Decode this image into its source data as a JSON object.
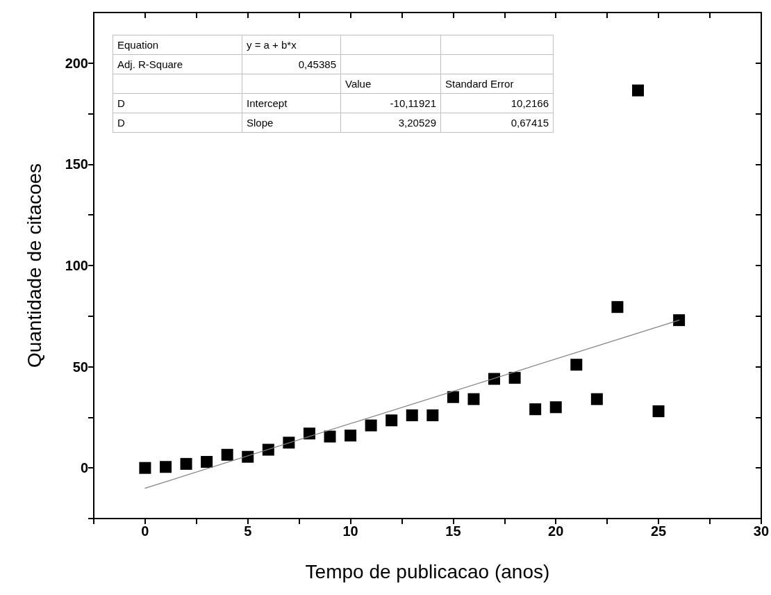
{
  "chart_data": {
    "type": "scatter",
    "xlabel": "Tempo de publicacao (anos)",
    "ylabel": "Quantidade de citacoes",
    "x": [
      0,
      1,
      2,
      3,
      4,
      5,
      6,
      7,
      8,
      9,
      10,
      11,
      12,
      13,
      14,
      15,
      16,
      17,
      18,
      19,
      20,
      21,
      22,
      23,
      24,
      25,
      26
    ],
    "series": [
      {
        "color": "#000000",
        "marker": "square",
        "values": [
          0,
          0.5,
          2,
          3,
          6.5,
          5.5,
          9,
          12.5,
          17,
          15.5,
          16,
          21,
          23.5,
          26,
          26,
          35,
          34,
          44,
          44.5,
          29,
          30,
          51,
          34,
          79.5,
          186.5,
          28,
          73
        ]
      },
      {
        "type": "line",
        "color": "#808080",
        "marker": "none",
        "x": [
          0,
          26
        ],
        "values": [
          -10,
          73
        ]
      }
    ],
    "xlim": [
      -2.5,
      30
    ],
    "xticks": [
      {
        "value": -2.5,
        "label": null
      },
      0,
      {
        "value": 2.5,
        "label": null
      },
      5,
      {
        "value": 7.5,
        "label": null
      },
      10,
      {
        "value": 12.5,
        "label": null
      },
      15,
      {
        "value": 17.5,
        "label": null
      },
      20,
      {
        "value": 22.5,
        "label": null
      },
      25,
      {
        "value": 27.5,
        "label": null
      },
      30
    ],
    "ylim": [
      -25,
      225
    ],
    "yticks": [
      {
        "value": -25,
        "label": null
      },
      0,
      {
        "value": 25,
        "label": null
      },
      50,
      {
        "value": 75,
        "label": null
      },
      100,
      {
        "value": 125,
        "label": null
      },
      150,
      {
        "value": 175,
        "label": null
      },
      200
    ],
    "grid": false,
    "annotations": [
      "Equation",
      "y = a + b*x",
      "Adj. R-Square",
      "0,45385",
      "Value",
      "Standard Error",
      "D",
      "Intercept",
      "-10,11921",
      "10,2166",
      "D",
      "Slope",
      "3,20529",
      "0,67415"
    ]
  }
}
